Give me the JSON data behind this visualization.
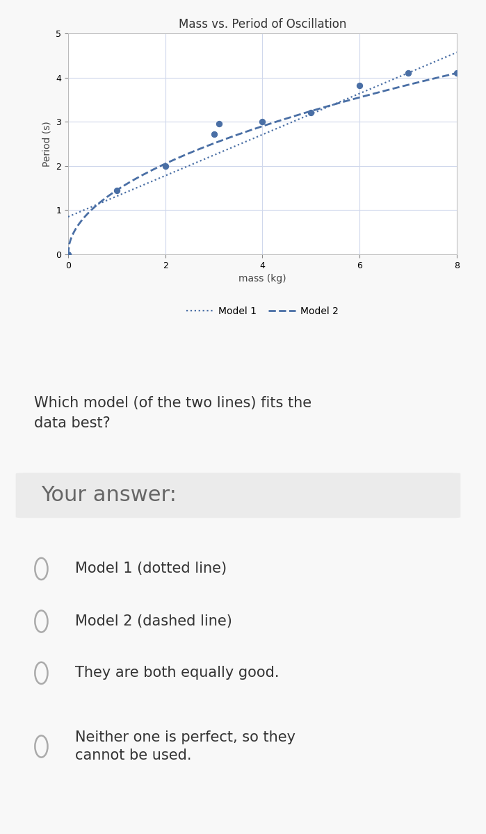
{
  "title": "Mass vs. Period of Oscillation",
  "xlabel": "mass (kg)",
  "ylabel": "Period (s)",
  "xlim": [
    0,
    8
  ],
  "ylim": [
    0,
    5
  ],
  "xticks": [
    0,
    2,
    4,
    6,
    8
  ],
  "yticks": [
    0,
    1,
    2,
    3,
    4,
    5
  ],
  "data_x": [
    0,
    1,
    2,
    3,
    3.1,
    4,
    5,
    6,
    7,
    8
  ],
  "data_y": [
    0.0,
    1.45,
    2.0,
    2.72,
    2.95,
    3.0,
    3.2,
    3.82,
    4.1,
    4.1
  ],
  "model1_slope": 0.465,
  "model1_intercept": 0.85,
  "model2_scale": 1.45,
  "line_color": "#4A6FA5",
  "data_color": "#4A6FA5",
  "grid_color": "#D0D8EC",
  "background_color": "#f8f8f8",
  "plot_bg_color": "#ffffff",
  "legend_model1": "Model 1",
  "legend_model2": "Model 2",
  "question_text": "Which model (of the two lines) fits the\ndata best?",
  "answer_label": "Your answer:",
  "options": [
    "Model 1 (dotted line)",
    "Model 2 (dashed line)",
    "They are both equally good.",
    "Neither one is perfect, so they\ncannot be used."
  ],
  "title_fontsize": 12,
  "axis_label_fontsize": 10,
  "tick_fontsize": 9,
  "legend_fontsize": 10,
  "question_fontsize": 15,
  "answer_fontsize": 22,
  "option_fontsize": 15
}
